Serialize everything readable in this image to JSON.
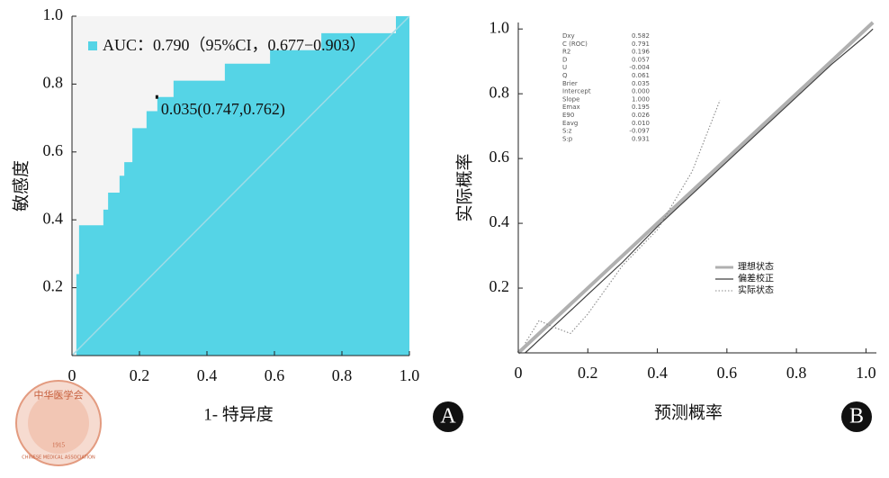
{
  "chart_data": [
    {
      "type": "roc",
      "panel": "A",
      "x_label": "1- 特异度",
      "y_label": "敏感度",
      "legend_label": "AUC：0.790（95%CI，0.677−0.903）",
      "color": "#55d4e6",
      "annotation": "0.035(0.747,0.762)",
      "cutoff_point": {
        "x": 0.253,
        "y": 0.762
      },
      "x": [
        0,
        0.013,
        0.013,
        0.021,
        0.021,
        0.093,
        0.093,
        0.107,
        0.107,
        0.141,
        0.141,
        0.155,
        0.155,
        0.179,
        0.179,
        0.221,
        0.221,
        0.253,
        0.253,
        0.301,
        0.301,
        0.453,
        0.453,
        0.587,
        0.587,
        0.739,
        0.739,
        0.96,
        0.96,
        1
      ],
      "y": [
        0,
        0,
        0.24,
        0.24,
        0.384,
        0.384,
        0.43,
        0.43,
        0.48,
        0.48,
        0.53,
        0.53,
        0.57,
        0.57,
        0.67,
        0.67,
        0.72,
        0.72,
        0.762,
        0.762,
        0.81,
        0.81,
        0.86,
        0.86,
        0.9,
        0.9,
        0.95,
        0.95,
        1,
        1
      ],
      "xlim": [
        0,
        1
      ],
      "ylim": [
        0,
        1
      ],
      "xticks": [
        0,
        0.2,
        0.4,
        0.6,
        0.8,
        {
          "value": 1,
          "label": "1.0"
        }
      ],
      "yticks": [
        0.2,
        0.4,
        0.6,
        0.8,
        {
          "value": 1,
          "label": "1.0"
        }
      ]
    },
    {
      "type": "calibration",
      "panel": "B",
      "x_label": "预测概率",
      "y_label": "实际概率",
      "xlim": [
        0,
        1.03
      ],
      "ylim": [
        0,
        1.02
      ],
      "xticks": [
        0,
        0.2,
        0.4,
        0.6,
        0.8,
        {
          "value": 1,
          "label": "1.0"
        }
      ],
      "yticks": [
        0.2,
        0.4,
        0.6,
        0.8,
        {
          "value": 1,
          "label": "1.0"
        }
      ],
      "series": [
        {
          "name": "理想状态",
          "color": "#b0b0b0",
          "x": [
            0,
            1.02
          ],
          "y": [
            0,
            1.02
          ]
        },
        {
          "name": "偏差校正",
          "color": "#404040",
          "x": [
            0.02,
            0.1,
            0.2,
            0.3,
            0.4,
            0.5,
            0.6,
            0.7,
            0.8,
            0.9,
            1.0,
            1.02
          ],
          "y": [
            0.0,
            0.08,
            0.18,
            0.28,
            0.39,
            0.49,
            0.59,
            0.69,
            0.79,
            0.89,
            0.98,
            1.0
          ]
        },
        {
          "name": "实际状态",
          "color": "#8a8a8a",
          "x": [
            0.02,
            0.06,
            0.1,
            0.15,
            0.2,
            0.3,
            0.4,
            0.5,
            0.58
          ],
          "y": [
            0.03,
            0.1,
            0.08,
            0.06,
            0.12,
            0.27,
            0.38,
            0.56,
            0.78
          ]
        }
      ],
      "stats": {
        "labels": [
          "Dxy",
          "C (ROC)",
          "R2",
          "D",
          "U",
          "Q",
          "Brier",
          "Intercept",
          "Slope",
          "Emax",
          "E90",
          "Eavg",
          "S:z",
          "S:p"
        ],
        "values": [
          "0.582",
          "0.791",
          "0.196",
          "0.057",
          "-0.004",
          "0.061",
          "0.035",
          "0.000",
          "1.000",
          "0.195",
          "0.026",
          "0.010",
          "-0.097",
          "0.931"
        ]
      }
    }
  ],
  "logo": {
    "name_cn": "中华医学会",
    "name_en": "CHINESE MEDICAL ASSOCIATION",
    "year": "1915"
  }
}
